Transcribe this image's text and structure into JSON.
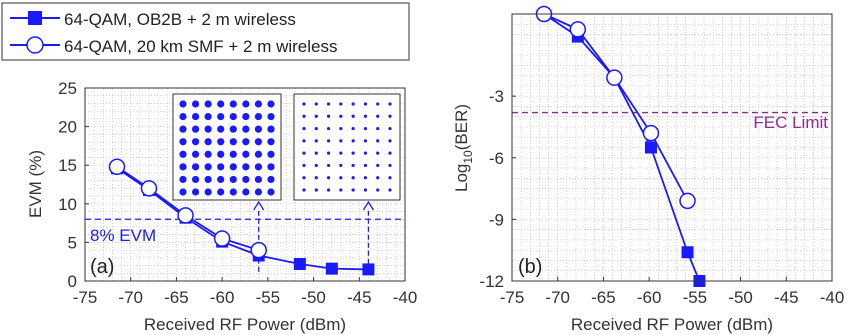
{
  "colors": {
    "series": "#1a1aff",
    "fec": "#8e2a8e",
    "grid": "#b8b8b8",
    "axis": "#333333",
    "text": "#333333"
  },
  "legend": {
    "entries": [
      {
        "label": "64-QAM, OB2B + 2 m wireless",
        "marker": "square-filled"
      },
      {
        "label": "64-QAM, 20 km SMF + 2 m wireless",
        "marker": "circle-open"
      }
    ]
  },
  "chart_data": [
    {
      "type": "line",
      "panel_label": "(a)",
      "xlabel": "Received RF Power (dBm)",
      "ylabel": "EVM (%)",
      "xlim": [
        -75,
        -40
      ],
      "ylim": [
        0,
        25
      ],
      "xticks": [
        -75,
        -70,
        -65,
        -60,
        -55,
        -50,
        -45,
        -40
      ],
      "yticks": [
        0,
        5,
        10,
        15,
        20,
        25
      ],
      "grid": true,
      "series": [
        {
          "name": "64-QAM, OB2B + 2 m wireless",
          "marker": "square-filled",
          "x": [
            -71.5,
            -68.0,
            -64.0,
            -60.0,
            -56.0,
            -51.5,
            -48.0,
            -44.0
          ],
          "y": [
            14.6,
            11.8,
            8.2,
            5.1,
            3.3,
            2.2,
            1.6,
            1.5
          ]
        },
        {
          "name": "64-QAM, 20 km SMF + 2 m wireless",
          "marker": "circle-open",
          "x": [
            -71.5,
            -68.0,
            -64.0,
            -60.0,
            -56.0
          ],
          "y": [
            14.8,
            12.0,
            8.5,
            5.5,
            4.0
          ]
        }
      ],
      "threshold": {
        "value": 8,
        "label": "8% EVM"
      },
      "insets": [
        {
          "grid": 8,
          "dots": "large",
          "arrow_x": -56
        },
        {
          "grid": 8,
          "dots": "small",
          "arrow_x": -44
        }
      ]
    },
    {
      "type": "line",
      "panel_label": "(b)",
      "xlabel": "Received RF Power (dBm)",
      "ylabel_main": "Log",
      "ylabel_sub": "10",
      "ylabel_tail": "(BER)",
      "xlim": [
        -75,
        -40
      ],
      "ylim": [
        -12,
        1
      ],
      "xticks": [
        -75,
        -70,
        -65,
        -60,
        -55,
        -50,
        -45,
        -40
      ],
      "yticks": [
        -3,
        -6,
        -9,
        -12
      ],
      "grid": true,
      "series": [
        {
          "name": "64-QAM, OB2B + 2 m wireless",
          "marker": "square-filled",
          "x": [
            -71.5,
            -67.8,
            -63.8,
            -59.8,
            -55.8,
            -54.5
          ],
          "y": [
            1.0,
            -0.1,
            -2.1,
            -5.5,
            -10.6,
            -12.0
          ]
        },
        {
          "name": "64-QAM, 20 km SMF + 2 m wireless",
          "marker": "circle-open",
          "x": [
            -71.5,
            -67.8,
            -63.8,
            -59.8,
            -55.8
          ],
          "y": [
            1.0,
            0.25,
            -2.1,
            -4.8,
            -8.1
          ]
        }
      ],
      "threshold": {
        "value": -3.8,
        "label": "FEC Limit"
      }
    }
  ]
}
